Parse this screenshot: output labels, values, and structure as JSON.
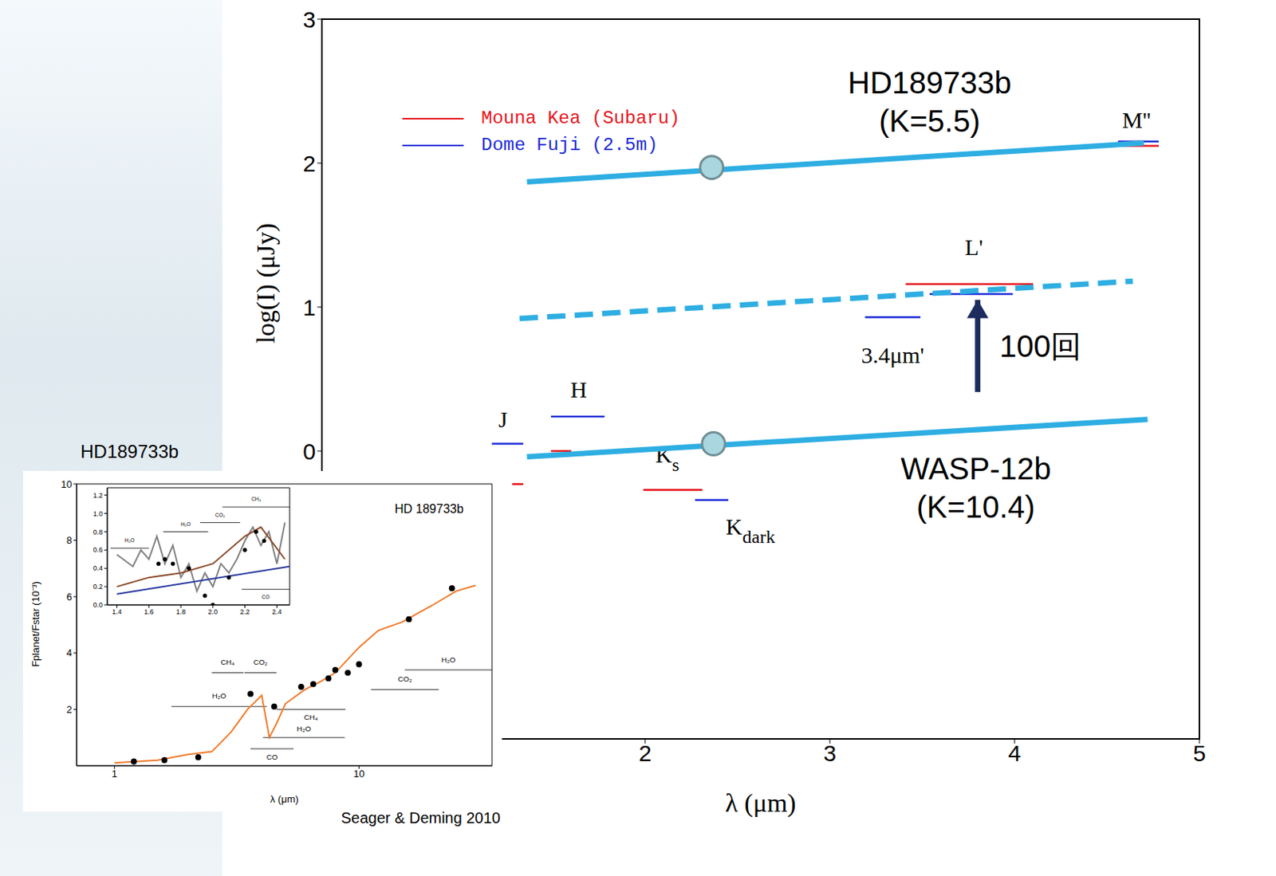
{
  "chart_data": [
    {
      "type": "line",
      "x_label": "λ (μm)",
      "y_label": "log(I) (μJy)",
      "xlim": [
        0.25,
        5
      ],
      "xticks": [
        2,
        3,
        4,
        5
      ],
      "ylim": [
        -2,
        3
      ],
      "yticks": [
        0,
        1,
        2,
        3
      ],
      "legend": "upper left",
      "series": [
        {
          "name": "HD189733b",
          "subtitle": "(K=5.5)",
          "color": "#2eaee2",
          "line_style": "solid",
          "x": [
            1.36,
            4.7
          ],
          "values": [
            1.87,
            2.14
          ],
          "marker": "circle",
          "marker_x": 2.36,
          "marker_y": 1.97,
          "label_x": 3.54,
          "label_y": 2.54
        },
        {
          "color": "#2eaee2",
          "line_style": "dashed",
          "x": [
            1.32,
            4.64
          ],
          "values": [
            0.92,
            1.18
          ]
        },
        {
          "name": "WASP-12b",
          "subtitle": "(K=10.4)",
          "color": "#2eaee2",
          "line_style": "solid",
          "x": [
            1.36,
            4.72
          ],
          "values": [
            -0.04,
            0.22
          ],
          "marker": "circle",
          "marker_x": 2.37,
          "marker_y": 0.05,
          "label_x": 3.79,
          "label_y": -0.14
        }
      ],
      "sites": [
        {
          "name": "Mouna Kea (Subaru)",
          "color": "#e8141b"
        },
        {
          "name": "Dome Fuji (2.5m)",
          "color": "#1a2ad8"
        }
      ],
      "bands": [
        {
          "label": "J",
          "site": 1,
          "x": [
            1.17,
            1.34
          ],
          "value": 0.05,
          "label_x": 1.23,
          "label_y": 0.2
        },
        {
          "site": 0,
          "x": [
            1.28,
            1.34
          ],
          "value": -0.23
        },
        {
          "label": "H",
          "site": 1,
          "x": [
            1.49,
            1.78
          ],
          "value": 0.24,
          "label_x": 1.64,
          "label_y": 0.41
        },
        {
          "site": 0,
          "x": [
            1.49,
            1.6
          ],
          "value": 0.0
        },
        {
          "label": "K",
          "label_sub": "s",
          "site": 0,
          "x": [
            1.99,
            2.31
          ],
          "value": -0.27,
          "label_x": 2.12,
          "label_y": -0.04
        },
        {
          "label": "K",
          "label_sub": "dark",
          "site": 1,
          "x": [
            2.27,
            2.45
          ],
          "value": -0.34,
          "label_x": 2.57,
          "label_y": -0.54
        },
        {
          "label": "3.4μm'",
          "site": 1,
          "x": [
            3.19,
            3.49
          ],
          "value": 0.93,
          "label_x": 3.34,
          "label_y": 0.65
        },
        {
          "site": 0,
          "x": [
            3.41,
            4.1
          ],
          "value": 1.16
        },
        {
          "label": "L'",
          "site": 1,
          "x": [
            3.54,
            3.99
          ],
          "value": 1.09,
          "label_x": 3.78,
          "label_y": 1.4
        },
        {
          "label": "M''",
          "site": 1,
          "x": [
            4.56,
            4.78
          ],
          "value": 2.15,
          "label_x": 4.66,
          "label_y": 2.28
        },
        {
          "site": 0,
          "x": [
            4.58,
            4.78
          ],
          "value": 2.12
        }
      ],
      "arrow": {
        "x": 3.8,
        "from": 0.41,
        "to": 1.05,
        "label": "100回",
        "label_x": 4.14,
        "label_y": 0.71,
        "color": "#1c2c5e"
      }
    },
    {
      "type": "line",
      "title": "HD 189733b",
      "caption": "HD189733b",
      "source": "Seager & Deming 2010",
      "x_label": "λ (μm)",
      "y_label": "Fplanet/Fstar (10⁻³)",
      "log": "x",
      "xlim": [
        0.7,
        35
      ],
      "xticks": [
        1,
        10
      ],
      "ylim": [
        0,
        10
      ],
      "yticks": [
        2,
        4,
        6,
        8,
        10
      ],
      "series": [
        {
          "type": "line",
          "color": "#f07a2a",
          "x": [
            1,
            1.5,
            2,
            2.5,
            3,
            3.5,
            4,
            4.3,
            4.6,
            5,
            6,
            7,
            8,
            10,
            12,
            15,
            20,
            25,
            30
          ],
          "values": [
            0.1,
            0.2,
            0.4,
            0.5,
            1.2,
            2.0,
            2.5,
            1.0,
            1.5,
            2.2,
            2.7,
            3.0,
            3.3,
            4.2,
            4.8,
            5.1,
            5.7,
            6.2,
            6.4
          ]
        },
        {
          "type": "scatter",
          "color": "#000000",
          "marker": "circle",
          "x": [
            1.2,
            1.6,
            2.2,
            3.6,
            4.5,
            5.8,
            6.5,
            7.5,
            8,
            9,
            10,
            16,
            24
          ],
          "values": [
            0.15,
            0.2,
            0.3,
            2.55,
            2.1,
            2.8,
            2.9,
            3.1,
            3.4,
            3.3,
            3.6,
            5.2,
            6.3
          ]
        }
      ],
      "annotations": [
        {
          "text": "CH₄",
          "x": [
            2.5,
            3.37
          ],
          "y": 3.3,
          "label_y": 3.65
        },
        {
          "text": "CO₂",
          "x": [
            3.4,
            4.6
          ],
          "y": 3.3,
          "label_y": 3.65
        },
        {
          "text": "H₂O",
          "x": [
            1.71,
            4.2
          ],
          "y": 2.1,
          "label_y": 2.45
        },
        {
          "text": "CH₄",
          "x": [
            4.6,
            8.8
          ],
          "y": 2.0,
          "label_y": 1.7
        },
        {
          "text": "H₂O",
          "x": [
            4.05,
            8.75
          ],
          "y": 1.0,
          "label_y": 1.3
        },
        {
          "text": "CO",
          "x": [
            3.6,
            5.4
          ],
          "y": 0.6,
          "label_y": 0.3
        },
        {
          "text": "CO₂",
          "x": [
            11.2,
            21.2
          ],
          "y": 2.7,
          "label_y": 3.05
        },
        {
          "text": "H₂O",
          "x": [
            15.4,
            35
          ],
          "y": 3.4,
          "label_y": 3.75
        }
      ]
    },
    {
      "type": "line",
      "xlim": [
        1.34,
        2.48
      ],
      "xticks": [
        1.4,
        1.6,
        1.8,
        {
          "value": 2,
          "label": "2.0"
        },
        2.2,
        2.4
      ],
      "ylim": [
        0,
        1.28
      ],
      "yticks": [
        {
          "value": 0,
          "label": "0.0"
        },
        0.2,
        0.4,
        0.6,
        0.8,
        {
          "value": 1,
          "label": "1.0"
        },
        1.2
      ],
      "series": [
        {
          "type": "line",
          "color": "#808080",
          "x": [
            1.4,
            1.5,
            1.55,
            1.6,
            1.65,
            1.7,
            1.75,
            1.8,
            1.85,
            1.9,
            1.95,
            2.0,
            2.05,
            2.1,
            2.15,
            2.2,
            2.25,
            2.3,
            2.35,
            2.4,
            2.45
          ],
          "values": [
            0.55,
            0.42,
            0.6,
            0.5,
            0.75,
            0.45,
            0.65,
            0.3,
            0.45,
            0.15,
            0.35,
            0.2,
            0.45,
            0.35,
            0.5,
            0.7,
            0.85,
            0.65,
            0.8,
            0.45,
            0.9
          ]
        },
        {
          "type": "line",
          "color": "#8b4a2b",
          "x": [
            1.4,
            1.6,
            1.8,
            2.0,
            2.2,
            2.3,
            2.45
          ],
          "values": [
            0.2,
            0.3,
            0.35,
            0.45,
            0.75,
            0.85,
            0.5
          ]
        },
        {
          "type": "line",
          "color": "#2a3aa0",
          "x": [
            1.4,
            2.48
          ],
          "values": [
            0.12,
            0.42
          ]
        },
        {
          "type": "scatter",
          "color": "#000000",
          "marker": "circle",
          "x": [
            1.66,
            1.7,
            1.75,
            1.85,
            1.95,
            2.0,
            2.1,
            2.2,
            2.27,
            2.32
          ],
          "values": [
            0.45,
            0.5,
            0.45,
            0.4,
            0.1,
            0.0,
            0.3,
            0.6,
            0.8,
            0.7
          ]
        }
      ],
      "annotations": [
        {
          "text": "H₂O",
          "x": [
            1.36,
            1.6
          ],
          "y": 0.62,
          "label_y": 0.7
        },
        {
          "text": "H₂O",
          "x": [
            1.69,
            1.97
          ],
          "y": 0.8,
          "label_y": 0.88
        },
        {
          "text": "CO₂",
          "x": [
            1.92,
            2.17
          ],
          "y": 0.9,
          "label_y": 0.98
        },
        {
          "text": "CH₄",
          "x": [
            2.06,
            2.48
          ],
          "y": 1.07,
          "label_y": 1.15
        },
        {
          "text": "CO",
          "x": [
            2.18,
            2.48
          ],
          "y": 0.17,
          "label_y": 0.08
        }
      ]
    }
  ]
}
